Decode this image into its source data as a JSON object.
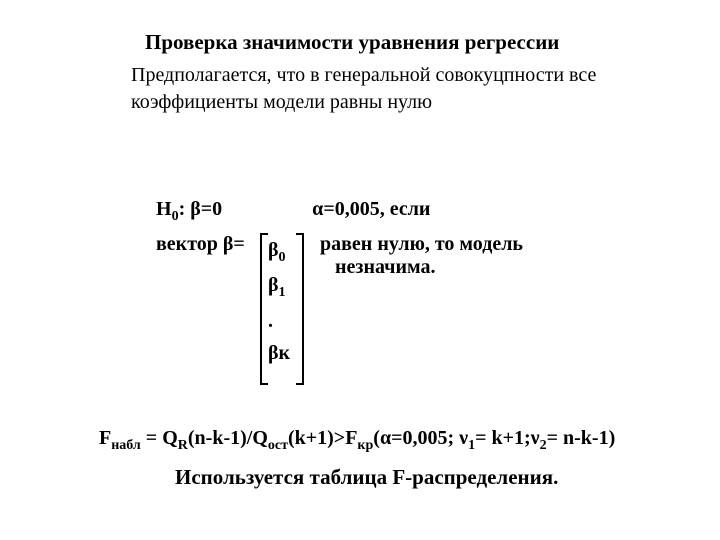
{
  "colors": {
    "bg": "#ffffff",
    "text": "#000000"
  },
  "font": {
    "family": "Times New Roman",
    "title_size_pt": 21,
    "body_size_pt": 20,
    "weight_bold": "bold"
  },
  "title": "Проверка значимости уравнения регрессии",
  "subtitle": "Предполагается, что в генеральной совокуцпности все коэффициенты модели равны нулю",
  "h0": {
    "left": "H",
    "left_sub": "0",
    "left_rest": ": β=0",
    "right": "α=0,005, если"
  },
  "vector": {
    "label": "вектор β=",
    "elements": [
      "β",
      "β",
      ".",
      "βк"
    ],
    "elem_subs": [
      "0",
      "1",
      "",
      ""
    ],
    "rhs1": "равен нулю, то модель",
    "rhs2": "незначима."
  },
  "formula": {
    "p1": "F",
    "s1": "набл",
    "p2": " = Q",
    "s2": "R",
    "p3": "(n-k-1)/Q",
    "s3": "ост",
    "p4": "(k+1)>F",
    "s4": "кр",
    "p5": "(α=0,005; ν",
    "s5": "1",
    "p6": "= k+1;ν",
    "s6": "2",
    "p7": "= n-k-1)"
  },
  "footer": "Используется  таблица F-распределения."
}
